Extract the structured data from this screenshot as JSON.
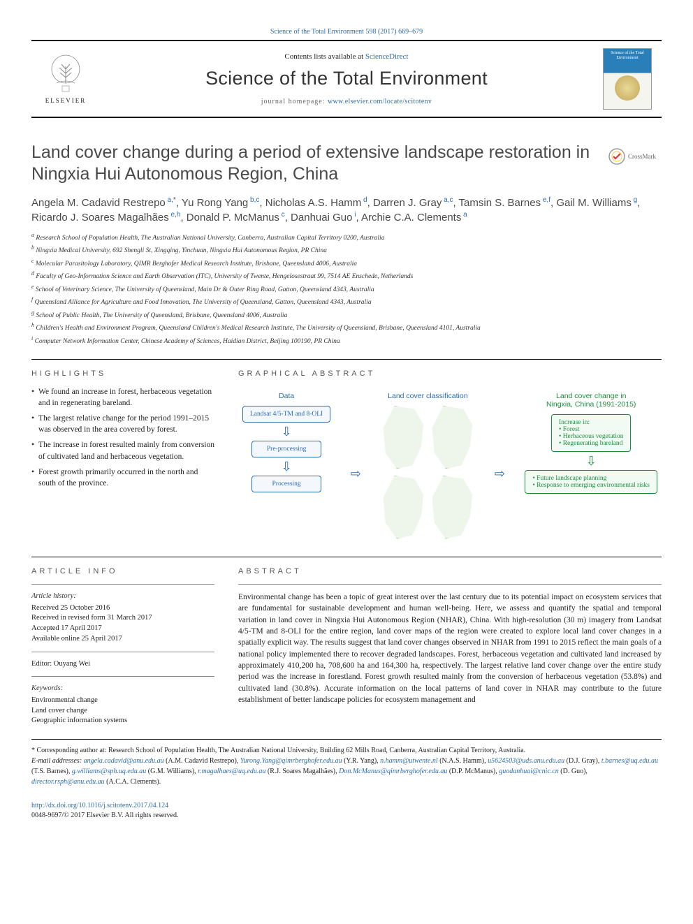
{
  "top_link": {
    "label": "Science of the Total Environment 598 (2017) 669–679"
  },
  "header": {
    "logo_label": "ELSEVIER",
    "contents_pre": "Contents lists available at ",
    "contents_link": "ScienceDirect",
    "journal_name": "Science of the Total Environment",
    "homepage_pre": "journal homepage: ",
    "homepage_link": "www.elsevier.com/locate/scitotenv",
    "cover_title": "Science of the Total Environment"
  },
  "article": {
    "title": "Land cover change during a period of extensive landscape restoration in Ningxia Hui Autonomous Region, China",
    "crossmark": "CrossMark"
  },
  "authors": [
    {
      "name": "Angela M. Cadavid Restrepo",
      "sup": " a,",
      "corr": "*"
    },
    {
      "name": "Yu Rong Yang",
      "sup": " b,c"
    },
    {
      "name": "Nicholas A.S. Hamm",
      "sup": " d"
    },
    {
      "name": "Darren J. Gray",
      "sup": " a,c"
    },
    {
      "name": "Tamsin S. Barnes",
      "sup": " e,f"
    },
    {
      "name": "Gail M. Williams",
      "sup": " g"
    },
    {
      "name": "Ricardo J. Soares Magalhães",
      "sup": " e,h"
    },
    {
      "name": "Donald P. McManus",
      "sup": " c"
    },
    {
      "name": "Danhuai Guo",
      "sup": " i"
    },
    {
      "name": "Archie C.A. Clements",
      "sup": " a"
    }
  ],
  "affiliations": [
    "a Research School of Population Health, The Australian National University, Canberra, Australian Capital Territory 0200, Australia",
    "b Ningxia Medical University, 692 Shengli St, Xingqing, Yinchuan, Ningxia Hui Autonomous Region, PR China",
    "c Molecular Parasitology Laboratory, QIMR Berghofer Medical Research Institute, Brisbane, Queensland 4006, Australia",
    "d Faculty of Geo-Information Science and Earth Observation (ITC), University of Twente, Hengelosestraat 99, 7514 AE Enschede, Netherlands",
    "e School of Veterinary Science, The University of Queensland, Main Dr & Outer Ring Road, Gatton, Queensland 4343, Australia",
    "f Queensland Alliance for Agriculture and Food Innovation, The University of Queensland, Gatton, Queensland 4343, Australia",
    "g School of Public Health, The University of Queensland, Brisbane, Queensland 4006, Australia",
    "h Children's Health and Environment Program, Queensland Children's Medical Research Institute, The University of Queensland, Brisbane, Queensland 4101, Australia",
    "i Computer Network Information Center, Chinese Academy of Sciences, Haidian District, Beijing 100190, PR China"
  ],
  "highlights": {
    "heading": "HIGHLIGHTS",
    "items": [
      "We found an increase in forest, herbaceous vegetation and in regenerating bareland.",
      "The largest relative change for the period 1991–2015 was observed in the area covered by forest.",
      "The increase in forest resulted mainly from conversion of cultivated land and herbaceous vegetation.",
      "Forest growth primarily occurred in the north and south of the province."
    ]
  },
  "graphical": {
    "heading": "GRAPHICAL ABSTRACT",
    "col1_label": "Data",
    "box1": "Landsat 4/5-TM and 8-OLI",
    "box2": "Pre-processing",
    "box3": "Processing",
    "col2_label": "Land cover classification",
    "col3_label": "Land cover change in Ningxia, China (1991-2015)",
    "increase_label": "Increase in:",
    "increase_items": [
      "Forest",
      "Herbaceous vegetation",
      "Regenerating bareland"
    ],
    "outcome_items": [
      "Future landscape planning",
      "Response to emerging environmental risks"
    ],
    "colors": {
      "blue": "#2b6cb0",
      "green": "#1a8f3a"
    }
  },
  "info": {
    "heading": "ARTICLE INFO",
    "history_label": "Article history:",
    "history": [
      "Received 25 October 2016",
      "Received in revised form 31 March 2017",
      "Accepted 17 April 2017",
      "Available online 25 April 2017"
    ],
    "editor_label": "Editor: Ouyang Wei",
    "keywords_label": "Keywords:",
    "keywords": [
      "Environmental change",
      "Land cover change",
      "Geographic information systems"
    ]
  },
  "abstract": {
    "heading": "ABSTRACT",
    "text": "Environmental change has been a topic of great interest over the last century due to its potential impact on ecosystem services that are fundamental for sustainable development and human well-being. Here, we assess and quantify the spatial and temporal variation in land cover in Ningxia Hui Autonomous Region (NHAR), China. With high-resolution (30 m) imagery from Landsat 4/5-TM and 8-OLI for the entire region, land cover maps of the region were created to explore local land cover changes in a spatially explicit way. The results suggest that land cover changes observed in NHAR from 1991 to 2015 reflect the main goals of a national policy implemented there to recover degraded landscapes. Forest, herbaceous vegetation and cultivated land increased by approximately 410,200 ha, 708,600 ha and 164,300 ha, respectively. The largest relative land cover change over the entire study period was the increase in forestland. Forest growth resulted mainly from the conversion of herbaceous vegetation (53.8%) and cultivated land (30.8%). Accurate information on the local patterns of land cover in NHAR may contribute to the future establishment of better landscape policies for ecosystem management and"
  },
  "footer": {
    "corr_label": "* Corresponding author at: Research School of Population Health, The Australian National University, Building 62 Mills Road, Canberra, Australian Capital Territory, Australia.",
    "email_label": "E-mail addresses: ",
    "emails": [
      {
        "addr": "angela.cadavid@anu.edu.au",
        "who": " (A.M. Cadavid Restrepo), "
      },
      {
        "addr": "Yurong.Yang@qimrberghofer.edu.au",
        "who": " (Y.R. Yang), "
      },
      {
        "addr": "n.hamm@utwente.nl",
        "who": " (N.A.S. Hamm), "
      },
      {
        "addr": "u5624503@uds.anu.edu.au",
        "who": " (D.J. Gray), "
      },
      {
        "addr": "t.barnes@uq.edu.au",
        "who": " (T.S. Barnes), "
      },
      {
        "addr": "g.williams@sph.uq.edu.au",
        "who": " (G.M. Williams), "
      },
      {
        "addr": "r.magalhaes@uq.edu.au",
        "who": " (R.J. Soares Magalhães), "
      },
      {
        "addr": "Don.McManus@qimrberghofer.edu.au",
        "who": " (D.P. McManus), "
      },
      {
        "addr": "guodanhuai@cnic.cn",
        "who": " (D. Guo), "
      },
      {
        "addr": "director.rsph@anu.edu.au",
        "who": " (A.C.A. Clements)."
      }
    ]
  },
  "doi": {
    "link": "http://dx.doi.org/10.1016/j.scitotenv.2017.04.124",
    "issn": "0048-9697/© 2017 Elsevier B.V. All rights reserved."
  }
}
